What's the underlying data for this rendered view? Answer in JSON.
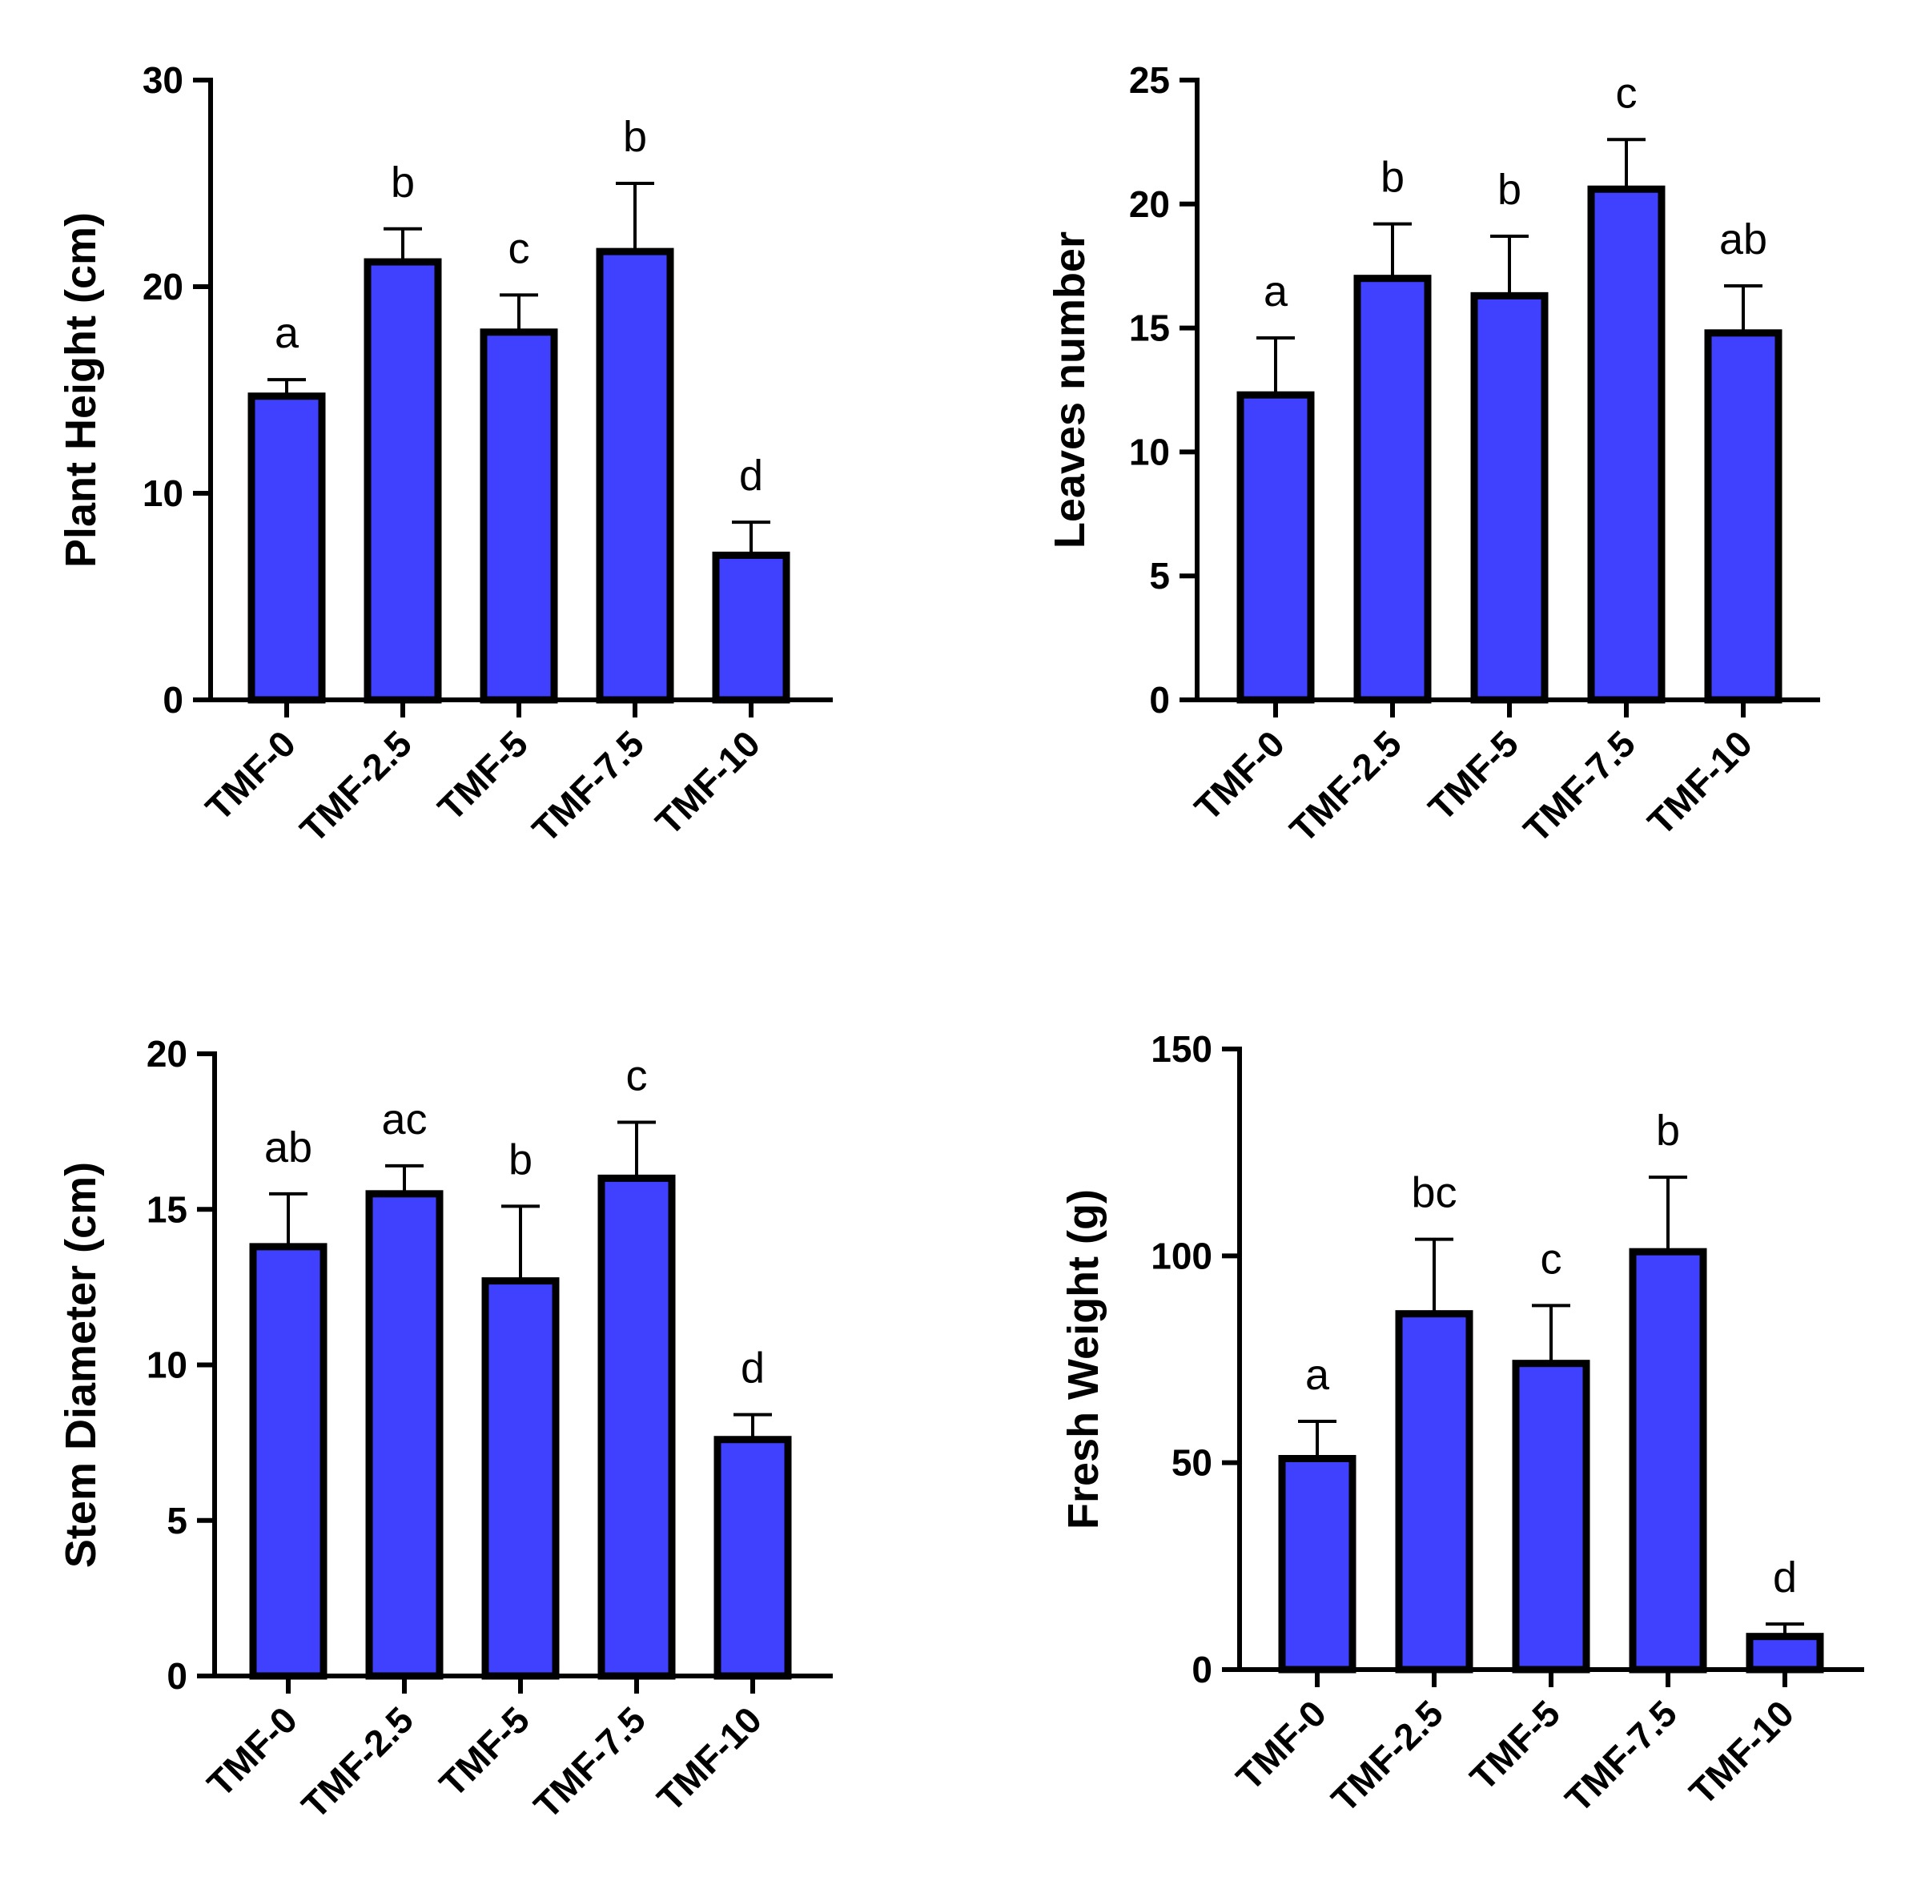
{
  "chart_data": [
    {
      "type": "bar",
      "ylabel": "Plant Height (cm)",
      "xlabel": "",
      "categories": [
        "TMF-0",
        "TMF-2.5",
        "TMF-5",
        "TMF-7.5",
        "TMF-10"
      ],
      "values": [
        14.7,
        21.2,
        17.8,
        21.7,
        7.0
      ],
      "errors": [
        0.8,
        1.6,
        1.8,
        3.3,
        1.6
      ],
      "significance": [
        "a",
        "b",
        "c",
        "b",
        "d"
      ],
      "ylim": [
        0,
        30
      ],
      "yticks": [
        "0",
        "10",
        "20",
        "30"
      ],
      "bar_color": "#4040ff"
    },
    {
      "type": "bar",
      "ylabel": "Leaves number",
      "xlabel": "",
      "categories": [
        "TMF-0",
        "TMF-2.5",
        "TMF-5",
        "TMF-7.5",
        "TMF-10"
      ],
      "values": [
        12.3,
        17.0,
        16.3,
        20.6,
        14.8
      ],
      "errors": [
        2.3,
        2.2,
        2.4,
        2.0,
        1.9
      ],
      "significance": [
        "a",
        "b",
        "b",
        "c",
        "ab"
      ],
      "ylim": [
        0,
        25
      ],
      "yticks": [
        "0",
        "5",
        "10",
        "15",
        "20",
        "25"
      ],
      "bar_color": "#4040ff"
    },
    {
      "type": "bar",
      "ylabel": "Stem Diameter (cm)",
      "xlabel": "",
      "categories": [
        "TMF-0",
        "TMF-2.5",
        "TMF-5",
        "TMF-7.5",
        "TMF-10"
      ],
      "values": [
        13.8,
        15.5,
        12.7,
        16.0,
        7.6
      ],
      "errors": [
        1.7,
        0.9,
        2.4,
        1.8,
        0.8
      ],
      "significance": [
        "ab",
        "ac",
        "b",
        "c",
        "d"
      ],
      "ylim": [
        0,
        20
      ],
      "yticks": [
        "0",
        "5",
        "10",
        "15",
        "20"
      ],
      "bar_color": "#4040ff"
    },
    {
      "type": "bar",
      "ylabel": "Fresh Weight (g)",
      "xlabel": "",
      "categories": [
        "TMF-0",
        "TMF-2.5",
        "TMF-5",
        "TMF-7.5",
        "TMF-10"
      ],
      "values": [
        51,
        86,
        74,
        101,
        8
      ],
      "errors": [
        9,
        18,
        14,
        18,
        3
      ],
      "significance": [
        "a",
        "bc",
        "c",
        "b",
        "d"
      ],
      "ylim": [
        0,
        150
      ],
      "yticks": [
        "0",
        "50",
        "100",
        "150"
      ],
      "bar_color": "#4040ff"
    }
  ]
}
